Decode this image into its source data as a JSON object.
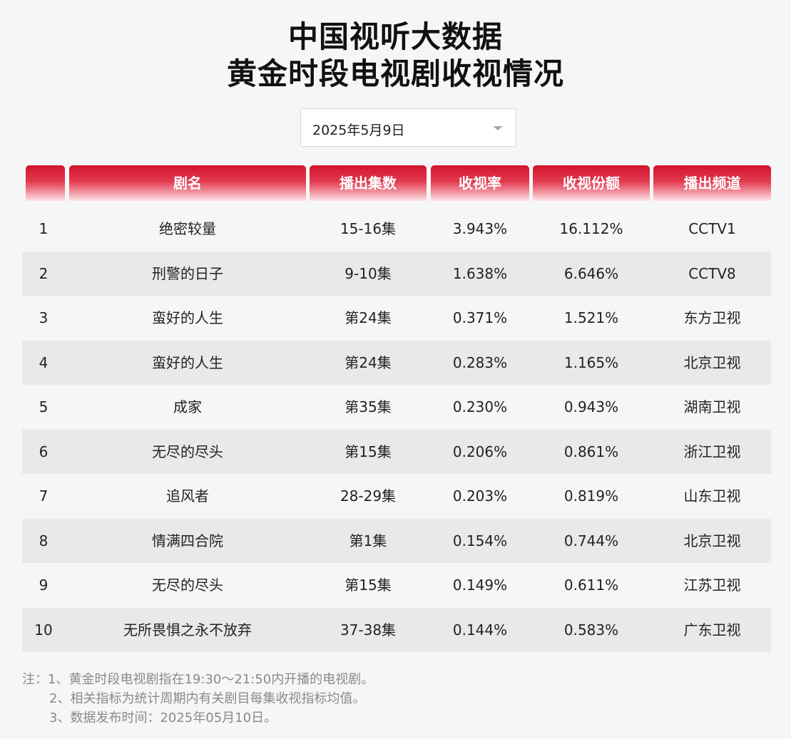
{
  "header": {
    "title_line1": "中国视听大数据",
    "title_line2": "黄金时段电视剧收视情况"
  },
  "date_select": {
    "value": "2025年5月9日"
  },
  "table": {
    "columns": [
      "",
      "剧名",
      "播出集数",
      "收视率",
      "收视份额",
      "播出频道"
    ],
    "rows": [
      [
        "1",
        "绝密较量",
        "15-16集",
        "3.943%",
        "16.112%",
        "CCTV1"
      ],
      [
        "2",
        "刑警的日子",
        "9-10集",
        "1.638%",
        "6.646%",
        "CCTV8"
      ],
      [
        "3",
        "蛮好的人生",
        "第24集",
        "0.371%",
        "1.521%",
        "东方卫视"
      ],
      [
        "4",
        "蛮好的人生",
        "第24集",
        "0.283%",
        "1.165%",
        "北京卫视"
      ],
      [
        "5",
        "成家",
        "第35集",
        "0.230%",
        "0.943%",
        "湖南卫视"
      ],
      [
        "6",
        "无尽的尽头",
        "第15集",
        "0.206%",
        "0.861%",
        "浙江卫视"
      ],
      [
        "7",
        "追风者",
        "28-29集",
        "0.203%",
        "0.819%",
        "山东卫视"
      ],
      [
        "8",
        "情满四合院",
        "第1集",
        "0.154%",
        "0.744%",
        "北京卫视"
      ],
      [
        "9",
        "无尽的尽头",
        "第15集",
        "0.149%",
        "0.611%",
        "江苏卫视"
      ],
      [
        "10",
        "无所畏惧之永不放弃",
        "37-38集",
        "0.144%",
        "0.583%",
        "广东卫视"
      ]
    ]
  },
  "notes": [
    "注：1、黄金时段电视剧指在19:30～21:50内开播的电视剧。",
    "2、相关指标为统计周期内有关剧目每集收视指标均值。",
    "3、数据发布时间：2025年05月10日。"
  ],
  "colors": {
    "header_red": "#d2142e",
    "row_alt": "#e9e9e9",
    "background": "#f6f6f6"
  }
}
